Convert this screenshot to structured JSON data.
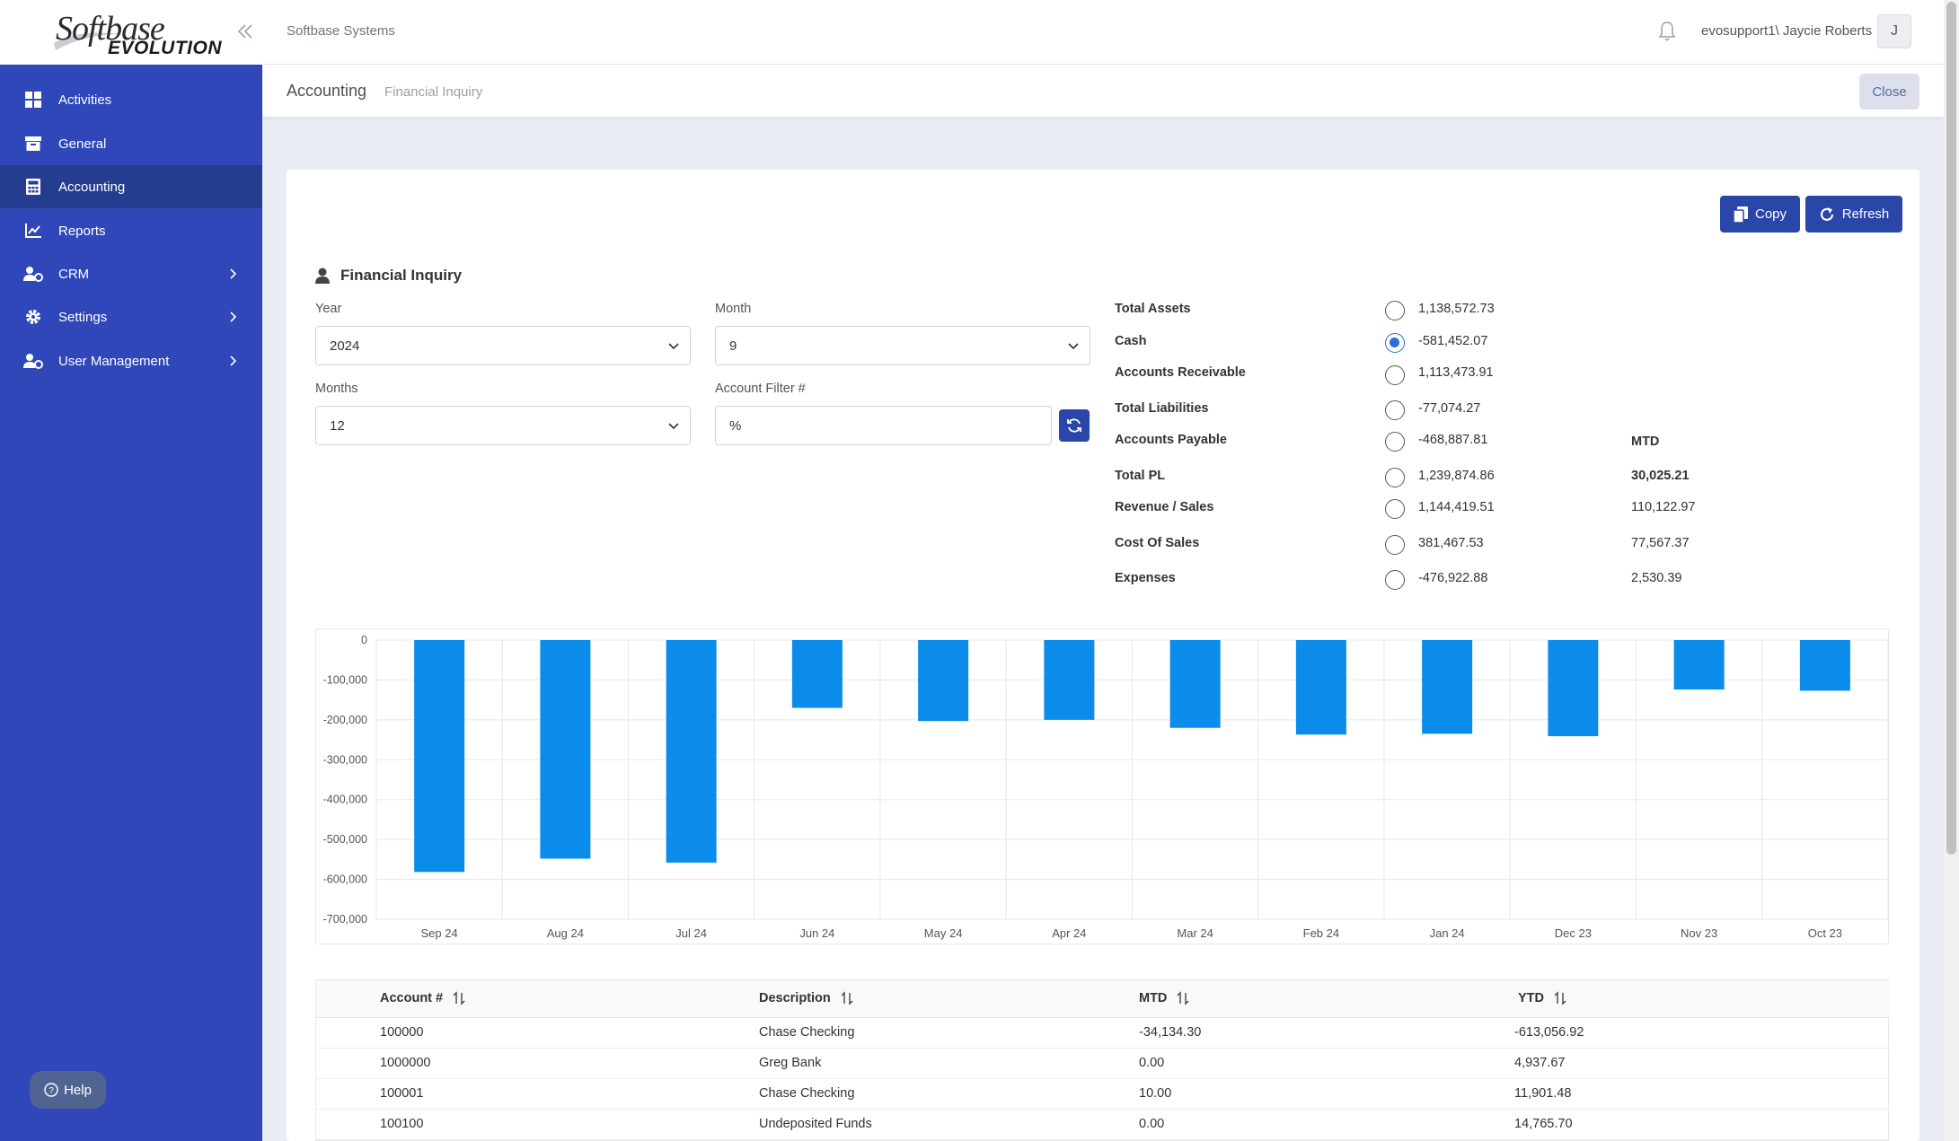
{
  "brand": {
    "logo_line1": "Softbase",
    "logo_line2": "EVOLUTION"
  },
  "sidebar": {
    "items": [
      {
        "label": "Activities",
        "icon": "grid-icon",
        "active": false,
        "has_children": false
      },
      {
        "label": "General",
        "icon": "archive-icon",
        "active": false,
        "has_children": false
      },
      {
        "label": "Accounting",
        "icon": "calculator-icon",
        "active": true,
        "has_children": false
      },
      {
        "label": "Reports",
        "icon": "chart-line-icon",
        "active": false,
        "has_children": false
      },
      {
        "label": "CRM",
        "icon": "users-cog-icon",
        "active": false,
        "has_children": true
      },
      {
        "label": "Settings",
        "icon": "gear-icon",
        "active": false,
        "has_children": true
      },
      {
        "label": "User Management",
        "icon": "user-cog-icon",
        "active": false,
        "has_children": true
      }
    ],
    "help_label": "Help"
  },
  "header": {
    "company": "Softbase Systems",
    "user": "evosupport1\\ Jaycie Roberts",
    "avatar_initial": "J"
  },
  "subheader": {
    "module": "Accounting",
    "page": "Financial Inquiry",
    "close_label": "Close"
  },
  "toolbar": {
    "copy_label": "Copy",
    "refresh_label": "Refresh"
  },
  "inquiry": {
    "title": "Financial Inquiry",
    "year_label": "Year",
    "year_value": "2024",
    "month_label": "Month",
    "month_value": "9",
    "months_label": "Months",
    "months_value": "12",
    "filter_label": "Account Filter #",
    "filter_value": "%"
  },
  "financials": {
    "mtd_header": "MTD",
    "rows": [
      {
        "label": "Total Assets",
        "value": "1,138,572.73",
        "mtd": "",
        "checked": false
      },
      {
        "label": "Cash",
        "value": "-581,452.07",
        "mtd": "",
        "checked": true
      },
      {
        "label": "Accounts Receivable",
        "value": "1,113,473.91",
        "mtd": "",
        "checked": false
      },
      {
        "label": "Total Liabilities",
        "value": "-77,074.27",
        "mtd": "",
        "checked": false
      },
      {
        "label": "Accounts Payable",
        "value": "-468,887.81",
        "mtd": "",
        "checked": false
      },
      {
        "label": "Total PL",
        "value": "1,239,874.86",
        "mtd": "30,025.21",
        "checked": false
      },
      {
        "label": "Revenue / Sales",
        "value": "1,144,419.51",
        "mtd": "110,122.97",
        "checked": false
      },
      {
        "label": "Cost Of Sales",
        "value": "381,467.53",
        "mtd": "77,567.37",
        "checked": false
      },
      {
        "label": "Expenses",
        "value": "-476,922.88",
        "mtd": "2,530.39",
        "checked": false
      }
    ]
  },
  "chart_data": {
    "type": "bar",
    "categories": [
      "Sep 24",
      "Aug 24",
      "Jul 24",
      "Jun 24",
      "May 24",
      "Apr 24",
      "Mar 24",
      "Feb 24",
      "Jan 24",
      "Dec 23",
      "Nov 23",
      "Oct 23"
    ],
    "values": [
      -581452,
      -548000,
      -558000,
      -170000,
      -203000,
      -200000,
      -220000,
      -237000,
      -235000,
      -241000,
      -124000,
      -127000
    ],
    "ylim": [
      -700000,
      0
    ],
    "yticks": [
      0,
      -100000,
      -200000,
      -300000,
      -400000,
      -500000,
      -600000,
      -700000
    ],
    "ytick_labels": [
      "0",
      "-100,000",
      "-200,000",
      "-300,000",
      "-400,000",
      "-500,000",
      "-600,000",
      "-700,000"
    ],
    "grid": true,
    "bar_color": "#0b8bea"
  },
  "table": {
    "columns": [
      "Account #",
      "Description",
      "MTD",
      "YTD"
    ],
    "rows": [
      [
        "100000",
        "Chase Checking",
        "-34,134.30",
        "-613,056.92"
      ],
      [
        "1000000",
        "Greg Bank",
        "0.00",
        "4,937.67"
      ],
      [
        "100001",
        "Chase Checking",
        "10.00",
        "11,901.48"
      ],
      [
        "100100",
        "Undeposited Funds",
        "0.00",
        "14,765.70"
      ]
    ]
  },
  "colors": {
    "sidebar": "#2f47b8",
    "active_nav": "#253d8f",
    "primary_button": "#2946a8",
    "radio_checked": "#2c6ed5"
  }
}
